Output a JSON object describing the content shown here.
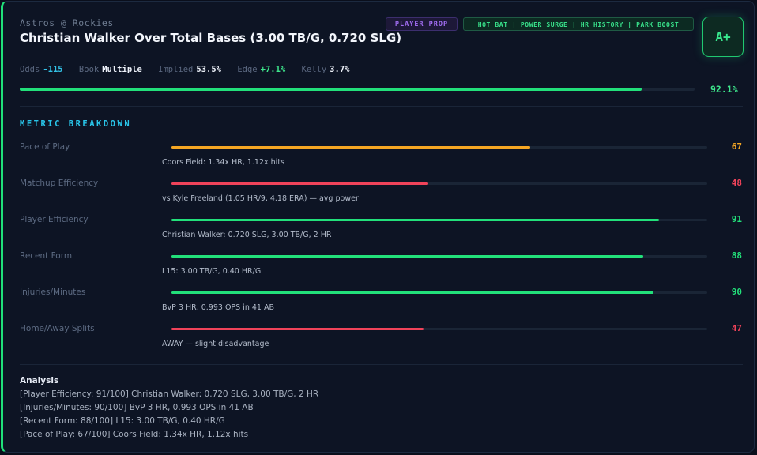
{
  "header": {
    "matchup": "Astros @ Rockies",
    "title": "Christian Walker Over Total Bases (3.00 TB/G, 0.720 SLG)",
    "badge_type": "PLAYER PROP",
    "badge_tags": "HOT BAT | POWER SURGE | HR HISTORY | PARK BOOST",
    "grade": "A+"
  },
  "stats": {
    "odds_label": "Odds",
    "odds_value": "-115",
    "book_label": "Book",
    "book_value": "Multiple",
    "implied_label": "Implied",
    "implied_value": "53.5%",
    "edge_label": "Edge",
    "edge_value": "+7.1%",
    "kelly_label": "Kelly",
    "kelly_value": "3.7%"
  },
  "overall": {
    "percent_text": "92.1%",
    "percent": 92.1,
    "color": "#22e07a"
  },
  "breakdown": {
    "heading": "METRIC BREAKDOWN",
    "metrics": [
      {
        "label": "Pace of Play",
        "score": 67,
        "detail": "Coors Field: 1.34x HR, 1.12x hits",
        "color": "#f5a623"
      },
      {
        "label": "Matchup Efficiency",
        "score": 48,
        "detail": "vs Kyle Freeland (1.05 HR/9, 4.18 ERA) — avg power",
        "color": "#f0435a"
      },
      {
        "label": "Player Efficiency",
        "score": 91,
        "detail": "Christian Walker: 0.720 SLG, 3.00 TB/G, 2 HR",
        "color": "#22e07a"
      },
      {
        "label": "Recent Form",
        "score": 88,
        "detail": "L15: 3.00 TB/G, 0.40 HR/G",
        "color": "#22e07a"
      },
      {
        "label": "Injuries/Minutes",
        "score": 90,
        "detail": "BvP 3 HR, 0.993 OPS in 41 AB",
        "color": "#22e07a"
      },
      {
        "label": "Home/Away Splits",
        "score": 47,
        "detail": "AWAY — slight disadvantage",
        "color": "#f0435a"
      }
    ]
  },
  "analysis": {
    "heading": "Analysis",
    "lines": [
      "[Player Efficiency: 91/100] Christian Walker: 0.720 SLG, 3.00 TB/G, 2 HR",
      "[Injuries/Minutes: 90/100] BvP 3 HR, 0.993 OPS in 41 AB",
      "[Recent Form: 88/100] L15: 3.00 TB/G, 0.40 HR/G",
      "[Pace of Play: 67/100] Coors Field: 1.34x HR, 1.12x hits"
    ]
  }
}
